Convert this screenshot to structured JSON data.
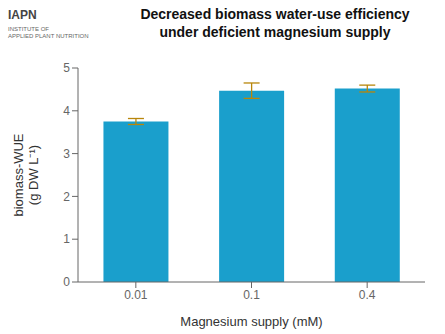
{
  "chart_data": {
    "type": "bar",
    "title": "Decreased biomass water-use efficiency\nunder deficient magnesium supply",
    "xlabel": "Magnesium supply (mM)",
    "ylabel": "biomass-WUE\n(g DW L⁻¹)",
    "annotations": [
      "IAPN",
      "INSTITUTE OF\nAPPLIED PLANT NUTRITION"
    ],
    "categories": [
      "0.01",
      "0.1",
      "0.4"
    ],
    "values": [
      3.75,
      4.47,
      4.52
    ],
    "errors": [
      0.07,
      0.18,
      0.08
    ],
    "color": "#1a9fcc",
    "ylim": [
      0,
      5
    ],
    "yticks": [
      0,
      1,
      2,
      3,
      4,
      5
    ],
    "grid": false
  }
}
